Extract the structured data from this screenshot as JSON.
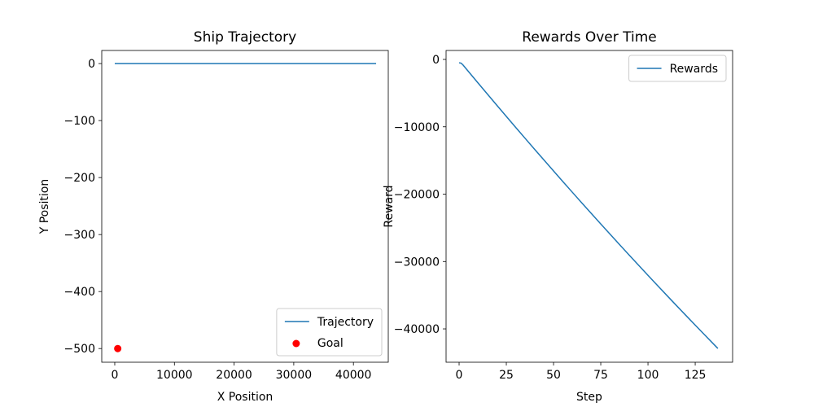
{
  "chart_data": [
    {
      "type": "line",
      "title": "Ship Trajectory",
      "x_label": "X Position",
      "y_label": "Y Position",
      "xlim": [
        -2180,
        45840
      ],
      "ylim": [
        -524,
        23
      ],
      "xticks": [
        0,
        10000,
        20000,
        30000,
        40000
      ],
      "yticks": [
        0,
        {
          "value": -100,
          "label": "−100"
        },
        {
          "value": -200,
          "label": "−200"
        },
        {
          "value": -300,
          "label": "−300"
        },
        {
          "value": -400,
          "label": "−400"
        },
        {
          "value": -500,
          "label": "−500"
        }
      ],
      "legend": "lower right",
      "series": [
        {
          "name": "Trajectory",
          "color": "#1f77b4",
          "type": "line",
          "x": [
            0,
            43800
          ],
          "values": [
            0,
            0
          ]
        },
        {
          "name": "Goal",
          "color": "#ff0000",
          "type": "scatter",
          "x": [
            500
          ],
          "values": [
            -500
          ]
        }
      ]
    },
    {
      "type": "line",
      "title": "Rewards Over Time",
      "x_label": "Step",
      "y_label": "Reward",
      "xlim": [
        -6.9,
        144.8
      ],
      "ylim": [
        -44950,
        1330
      ],
      "xticks": [
        0,
        25,
        50,
        75,
        100,
        125
      ],
      "yticks": [
        0,
        {
          "value": -10000,
          "label": "−10000"
        },
        {
          "value": -20000,
          "label": "−20000"
        },
        {
          "value": -30000,
          "label": "−30000"
        },
        {
          "value": -40000,
          "label": "−40000"
        }
      ],
      "legend": "upper right",
      "series": [
        {
          "name": "Rewards",
          "color": "#1f77b4",
          "type": "line",
          "x": [
            0,
            1,
            2,
            5,
            10,
            15,
            20,
            25,
            30,
            35,
            40,
            45,
            50,
            55,
            60,
            65,
            70,
            75,
            80,
            85,
            90,
            95,
            100,
            105,
            110,
            115,
            120,
            125,
            130,
            135,
            137
          ],
          "values": [
            -500,
            -550,
            -800,
            -1810,
            -3487,
            -5154,
            -6812,
            -8460,
            -10099,
            -11728,
            -13348,
            -14959,
            -16560,
            -18151,
            -19733,
            -21306,
            -22869,
            -24423,
            -25967,
            -27502,
            -29027,
            -30543,
            -32050,
            -33547,
            -35035,
            -36513,
            -37981,
            -39441,
            -40890,
            -42331,
            -42905
          ]
        }
      ]
    }
  ]
}
